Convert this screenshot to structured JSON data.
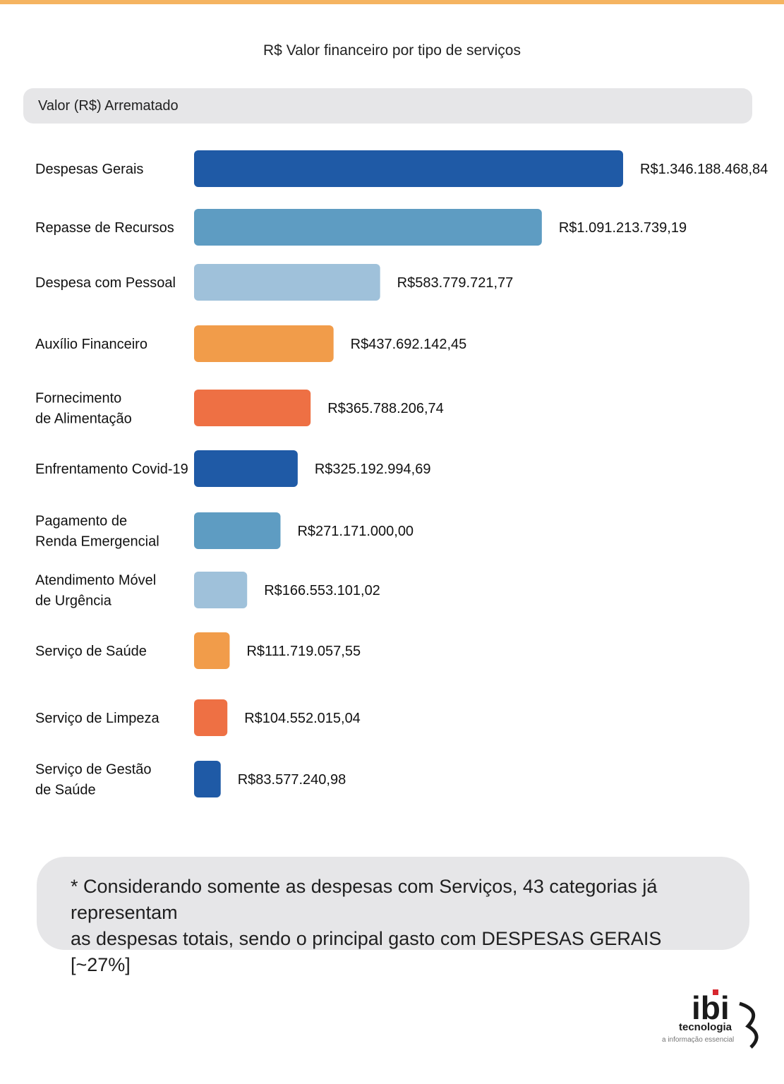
{
  "chart_data": {
    "type": "bar",
    "orientation": "horizontal",
    "title": "R$ Valor financeiro por tipo de serviços",
    "series_header": "Valor (R$) Arrematado",
    "categories": [
      [
        "Despesas Gerais"
      ],
      [
        "Repasse de Recursos"
      ],
      [
        "Despesa com Pessoal"
      ],
      [
        "Auxílio Financeiro"
      ],
      [
        "Fornecimento",
        "de Alimentação"
      ],
      [
        "Enfrentamento Covid-19"
      ],
      [
        "Pagamento de",
        "Renda Emergencial"
      ],
      [
        "Atendimento Móvel",
        "de Urgência"
      ],
      [
        "Serviço de Saúde"
      ],
      [
        "Serviço de Limpeza"
      ],
      [
        "Serviço de Gestão",
        "de Saúde"
      ]
    ],
    "values": [
      1346188468.84,
      1091213739.19,
      583779721.77,
      437692142.45,
      365788206.74,
      325192994.69,
      271171000.0,
      166553101.02,
      111719057.55,
      104552015.04,
      83577240.98
    ],
    "value_labels": [
      "R$1.346.188.468,84",
      "R$1.091.213.739,19",
      "R$583.779.721,77",
      "R$437.692.142,45",
      "R$365.788.206,74",
      "R$325.192.994,69",
      "R$271.171.000,00",
      "R$166.553.101,02",
      "R$111.719.057,55",
      "R$104.552.015,04",
      "R$83.577.240,98"
    ],
    "colors": [
      "#1f5aa6",
      "#5e9cc2",
      "#9fc1da",
      "#f19c4a",
      "#ee7044",
      "#1f5aa6",
      "#5e9cc2",
      "#9fc1da",
      "#f19c4a",
      "#ee7044",
      "#1f5aa6"
    ],
    "grid": false,
    "legend": "none"
  },
  "note": {
    "line1": "* Considerando somente as despesas com Serviços, 43 categorias já representam",
    "line2": "as despesas totais, sendo o principal gasto com DESPESAS GERAIS [~27%]"
  },
  "logo": {
    "wordmark": "ibi",
    "tagline": "tecnologia",
    "slogan": "a informação essencial",
    "accent_color": "#d7262e"
  }
}
